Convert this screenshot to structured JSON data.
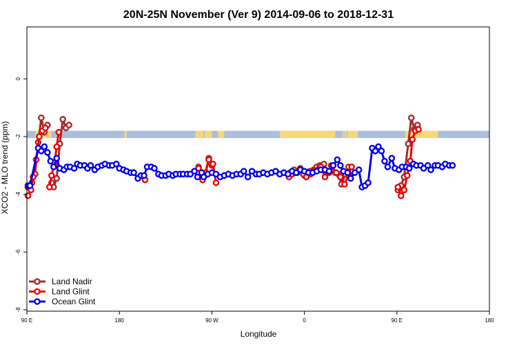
{
  "chart_data": {
    "type": "line",
    "title": "20N-25N November (Ver 9)   2014-09-06 to 2018-12-31",
    "xlabel": "Longitude",
    "ylabel": "XCO2 - MLO trend (ppm)",
    "xlim": [
      90,
      540
    ],
    "ylim": [
      -8.05,
      1.8
    ],
    "x_ticks": [
      {
        "value": 90,
        "label": "90 E"
      },
      {
        "value": 180,
        "label": "180"
      },
      {
        "value": 270,
        "label": "90 W"
      },
      {
        "value": 360,
        "label": "0"
      },
      {
        "value": 450,
        "label": "90 E"
      },
      {
        "value": 540,
        "label": "180"
      }
    ],
    "y_ticks": [
      {
        "value": 0,
        "label": "0"
      },
      {
        "value": -2,
        "label": "-2"
      },
      {
        "value": -4,
        "label": "-4"
      },
      {
        "value": -6,
        "label": "-6"
      },
      {
        "value": -8,
        "label": "-8"
      }
    ],
    "legend": {
      "position": "bottom-left",
      "entries": [
        "Land Nadir",
        "Land Glint",
        "Ocean Glint"
      ]
    },
    "map_strip": {
      "y_min": -2.05,
      "y_max": -1.8,
      "ocean_color": "#a9bfdc",
      "land_color": "#f9d678"
    },
    "series": [
      {
        "name": "Land Nadir",
        "color": "#a52a2a",
        "segments": [
          [
            [
              91,
              -3.75
            ],
            [
              95,
              -3.6
            ],
            [
              98,
              -3.3
            ],
            [
              101,
              -2.2
            ],
            [
              104,
              -1.35
            ],
            [
              107,
              -1.85
            ],
            [
              110,
              -1.6
            ]
          ],
          [
            [
              114,
              -3.6
            ],
            [
              116,
              -3.75
            ],
            [
              119,
              -3.45
            ],
            [
              122,
              -2.25
            ],
            [
              125,
              -1.4
            ],
            [
              128,
              -1.7
            ],
            [
              131,
              -1.6
            ]
          ],
          [
            [
              257,
              -3.05
            ],
            [
              260,
              -3.4
            ],
            [
              263,
              -3.35
            ],
            [
              267,
              -2.75
            ],
            [
              270,
              -3.0
            ]
          ],
          [
            [
              346,
              -3.25
            ],
            [
              350,
              -3.15
            ],
            [
              353,
              -3.25
            ],
            [
              356,
              -3.1
            ],
            [
              360,
              -3.35
            ],
            [
              365,
              -3.2
            ],
            [
              369,
              -3.15
            ],
            [
              372,
              -3.05
            ],
            [
              375,
              -3.0
            ],
            [
              379,
              -2.95
            ],
            [
              383,
              -3.25
            ],
            [
              386,
              -3.0
            ],
            [
              390,
              -3.25
            ],
            [
              393,
              -3.3
            ],
            [
              396,
              -3.65
            ],
            [
              400,
              -3.3
            ],
            [
              403,
              -3.05
            ]
          ],
          [
            [
              451,
              -3.85
            ],
            [
              454,
              -3.7
            ],
            [
              457,
              -3.4
            ],
            [
              461,
              -2.25
            ],
            [
              464,
              -1.35
            ],
            [
              467,
              -1.75
            ],
            [
              470,
              -1.6
            ]
          ]
        ]
      },
      {
        "name": "Land Glint",
        "color": "#ee0000",
        "segments": [
          [
            [
              91,
              -4.05
            ],
            [
              94,
              -3.85
            ],
            [
              96,
              -3.4
            ],
            [
              99,
              -2.8
            ],
            [
              102,
              -2.0
            ],
            [
              105,
              -1.8
            ],
            [
              108,
              -1.7
            ]
          ],
          [
            [
              112,
              -3.75
            ],
            [
              114,
              -3.35
            ],
            [
              117,
              -2.9
            ],
            [
              119,
              -2.35
            ],
            [
              121,
              -1.85
            ]
          ],
          [
            [
              201,
              -3.35
            ],
            [
              205,
              -3.5
            ]
          ],
          [
            [
              257,
              -3.1
            ],
            [
              261,
              -3.5
            ],
            [
              264,
              -3.25
            ],
            [
              267,
              -2.8
            ],
            [
              271,
              -2.95
            ],
            [
              274,
              -3.6
            ]
          ],
          [
            [
              345,
              -3.4
            ],
            [
              348,
              -3.3
            ],
            [
              351,
              -3.25
            ],
            [
              355,
              -3.2
            ],
            [
              359,
              -3.3
            ],
            [
              362,
              -3.4
            ],
            [
              366,
              -3.3
            ],
            [
              369,
              -3.2
            ],
            [
              373,
              -3.15
            ],
            [
              376,
              -3.05
            ],
            [
              380,
              -3.4
            ],
            [
              384,
              -3.25
            ],
            [
              387,
              -3.05
            ],
            [
              391,
              -3.25
            ],
            [
              395,
              -3.4
            ],
            [
              399,
              -3.65
            ],
            [
              403,
              -3.3
            ],
            [
              406,
              -3.05
            ]
          ],
          [
            [
              451,
              -3.75
            ],
            [
              454,
              -4.05
            ],
            [
              457,
              -3.85
            ],
            [
              460,
              -3.35
            ],
            [
              463,
              -2.85
            ],
            [
              465,
              -2.1
            ],
            [
              468,
              -1.8
            ],
            [
              471,
              -1.75
            ]
          ]
        ]
      },
      {
        "name": "Ocean Glint",
        "color": "#0000ee",
        "segments": [
          [
            [
              91,
              -3.7
            ],
            [
              93,
              -3.7
            ],
            [
              101,
              -2.4
            ],
            [
              104,
              -2.5
            ],
            [
              107,
              -2.35
            ],
            [
              110,
              -2.55
            ],
            [
              113,
              -2.85
            ],
            [
              116,
              -3.05
            ],
            [
              119,
              -2.75
            ],
            [
              122,
              -3.1
            ],
            [
              126,
              -3.15
            ],
            [
              129,
              -3.05
            ],
            [
              132,
              -3.05
            ],
            [
              136,
              -3.1
            ],
            [
              139,
              -2.95
            ],
            [
              142,
              -3.0
            ],
            [
              146,
              -3.0
            ],
            [
              149,
              -3.1
            ],
            [
              152,
              -3.0
            ],
            [
              156,
              -3.15
            ],
            [
              159,
              -3.05
            ],
            [
              163,
              -3.0
            ],
            [
              166,
              -2.95
            ],
            [
              170,
              -3.0
            ],
            [
              173,
              -3.0
            ],
            [
              177,
              -2.95
            ],
            [
              180,
              -3.1
            ],
            [
              184,
              -3.15
            ],
            [
              187,
              -3.2
            ],
            [
              191,
              -3.25
            ],
            [
              194,
              -3.25
            ],
            [
              198,
              -3.45
            ],
            [
              201,
              -3.35
            ],
            [
              204,
              -3.35
            ],
            [
              207,
              -3.05
            ],
            [
              211,
              -3.05
            ],
            [
              214,
              -3.1
            ],
            [
              218,
              -3.3
            ],
            [
              221,
              -3.35
            ],
            [
              225,
              -3.35
            ],
            [
              228,
              -3.3
            ],
            [
              232,
              -3.35
            ],
            [
              235,
              -3.3
            ],
            [
              239,
              -3.3
            ],
            [
              242,
              -3.3
            ],
            [
              246,
              -3.3
            ],
            [
              249,
              -3.3
            ],
            [
              253,
              -3.2
            ],
            [
              256,
              -3.4
            ],
            [
              260,
              -3.25
            ],
            [
              262,
              -3.4
            ],
            [
              266,
              -3.3
            ],
            [
              270,
              -3.25
            ],
            [
              274,
              -3.3
            ],
            [
              278,
              -3.4
            ],
            [
              282,
              -3.35
            ],
            [
              286,
              -3.3
            ],
            [
              290,
              -3.35
            ],
            [
              294,
              -3.3
            ],
            [
              298,
              -3.3
            ],
            [
              301,
              -3.2
            ],
            [
              305,
              -3.4
            ],
            [
              309,
              -3.2
            ],
            [
              313,
              -3.3
            ],
            [
              316,
              -3.3
            ],
            [
              320,
              -3.25
            ],
            [
              324,
              -3.3
            ],
            [
              328,
              -3.25
            ],
            [
              332,
              -3.2
            ],
            [
              336,
              -3.3
            ],
            [
              340,
              -3.25
            ],
            [
              344,
              -3.3
            ],
            [
              348,
              -3.2
            ],
            [
              352,
              -3.25
            ],
            [
              356,
              -3.15
            ],
            [
              360,
              -3.2
            ],
            [
              364,
              -3.25
            ],
            [
              368,
              -3.25
            ],
            [
              372,
              -3.2
            ],
            [
              376,
              -3.15
            ],
            [
              380,
              -3.15
            ],
            [
              384,
              -3.2
            ],
            [
              388,
              -3.0
            ],
            [
              392,
              -2.8
            ],
            [
              395,
              -3.0
            ],
            [
              398,
              -3.2
            ],
            [
              402,
              -3.25
            ],
            [
              405,
              -3.45
            ],
            [
              409,
              -3.25
            ],
            [
              413,
              -3.15
            ],
            [
              416,
              -3.75
            ],
            [
              419,
              -3.7
            ],
            [
              422,
              -3.6
            ],
            [
              426,
              -2.4
            ],
            [
              429,
              -2.5
            ],
            [
              432,
              -2.35
            ],
            [
              435,
              -2.5
            ],
            [
              438,
              -2.85
            ],
            [
              441,
              -3.05
            ],
            [
              445,
              -2.75
            ],
            [
              448,
              -3.1
            ],
            [
              452,
              -3.15
            ],
            [
              455,
              -3.05
            ],
            [
              459,
              -3.05
            ],
            [
              462,
              -3.1
            ],
            [
              466,
              -2.95
            ],
            [
              469,
              -3.0
            ],
            [
              473,
              -3.0
            ],
            [
              476,
              -3.1
            ],
            [
              480,
              -3.0
            ],
            [
              483,
              -3.15
            ],
            [
              487,
              -3.0
            ],
            [
              490,
              -3.0
            ],
            [
              494,
              -3.05
            ],
            [
              497,
              -2.95
            ],
            [
              501,
              -3.0
            ],
            [
              504,
              -3.0
            ]
          ]
        ]
      }
    ]
  }
}
